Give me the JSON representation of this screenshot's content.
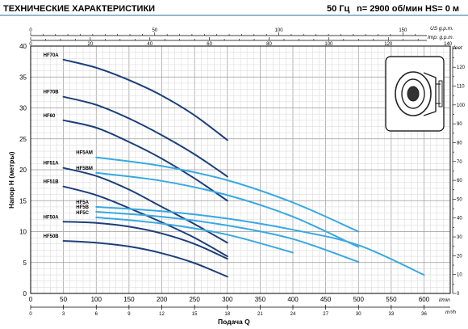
{
  "header": {
    "title": "ТЕХНИЧЕСКИЕ ХАРАКТЕРИСТИКИ",
    "freq": "50 Гц",
    "speed": "n= 2900 об/мин",
    "hs": "HS= 0 м"
  },
  "chart_data": {
    "type": "line",
    "xlabel": "Подача Q",
    "ylabel": "Напор H (метры)",
    "x_unit": "l/min",
    "x_unit2": "m³/h",
    "top_unit_us": "US g.p.m.",
    "top_unit_imp": "Imp. g.p.m.",
    "right_unit": "feet",
    "xlim": [
      0,
      640
    ],
    "ylim": [
      0,
      40
    ],
    "x_ticks": [
      0,
      50,
      100,
      150,
      200,
      250,
      300,
      350,
      400,
      450,
      500,
      550,
      600
    ],
    "y_ticks": [
      0,
      5,
      10,
      15,
      20,
      25,
      30,
      35,
      40
    ],
    "m3h_ticks": [
      0,
      3,
      6,
      9,
      12,
      15,
      18,
      21,
      24,
      27,
      30,
      33,
      36
    ],
    "us_gpm_ticks": [
      0,
      50,
      100,
      150
    ],
    "imp_gpm_ticks": [
      0,
      20,
      40,
      60,
      80,
      100,
      120,
      140
    ],
    "feet_ticks": [
      0,
      10,
      20,
      30,
      40,
      50,
      60,
      70,
      80,
      90,
      100,
      110,
      120
    ],
    "grid": true,
    "series": [
      {
        "name": "HF70A",
        "x": [
          50,
          100,
          150,
          200,
          250,
          300
        ],
        "y": [
          37.8,
          36.5,
          34.5,
          32.0,
          28.8,
          24.8
        ]
      },
      {
        "name": "HF70B",
        "x": [
          50,
          100,
          150,
          200,
          250,
          300
        ],
        "y": [
          31.8,
          30.5,
          28.3,
          25.6,
          22.5,
          18.9
        ]
      },
      {
        "name": "HF60",
        "x": [
          50,
          100,
          150,
          200,
          250,
          300
        ],
        "y": [
          28.0,
          26.8,
          24.5,
          21.8,
          18.6,
          15.0
        ]
      },
      {
        "name": "HF51A",
        "x": [
          50,
          100,
          150,
          200,
          250,
          300
        ],
        "y": [
          20.3,
          19.0,
          16.8,
          14.0,
          11.2,
          8.2
        ]
      },
      {
        "name": "HF51B",
        "x": [
          50,
          100,
          150,
          200,
          250,
          300
        ],
        "y": [
          17.3,
          15.9,
          13.8,
          11.5,
          9.0,
          6.0
        ]
      },
      {
        "name": "HF50A",
        "x": [
          50,
          100,
          150,
          200,
          250,
          300
        ],
        "y": [
          11.6,
          11.4,
          10.8,
          9.7,
          8.0,
          5.6
        ]
      },
      {
        "name": "HF50B",
        "x": [
          50,
          100,
          150,
          200,
          250,
          300
        ],
        "y": [
          8.5,
          8.2,
          7.6,
          6.5,
          4.9,
          2.7
        ]
      },
      {
        "name": "HF5AM",
        "x": [
          100,
          200,
          300,
          400,
          500
        ],
        "y": [
          22.0,
          20.6,
          18.3,
          14.7,
          10.0
        ]
      },
      {
        "name": "HF5BM",
        "x": [
          100,
          200,
          300,
          400,
          500
        ],
        "y": [
          19.5,
          18.2,
          15.9,
          12.4,
          7.5
        ]
      },
      {
        "name": "HF5A",
        "x": [
          100,
          200,
          300,
          400,
          500,
          600
        ],
        "y": [
          14.0,
          13.3,
          12.1,
          10.3,
          7.8,
          3.0
        ]
      },
      {
        "name": "HF5B",
        "x": [
          100,
          200,
          300,
          400,
          500
        ],
        "y": [
          13.2,
          12.4,
          11.0,
          8.8,
          5.1
        ]
      },
      {
        "name": "HF5C",
        "x": [
          100,
          200,
          300,
          400
        ],
        "y": [
          12.3,
          11.3,
          9.5,
          6.6
        ]
      }
    ]
  }
}
